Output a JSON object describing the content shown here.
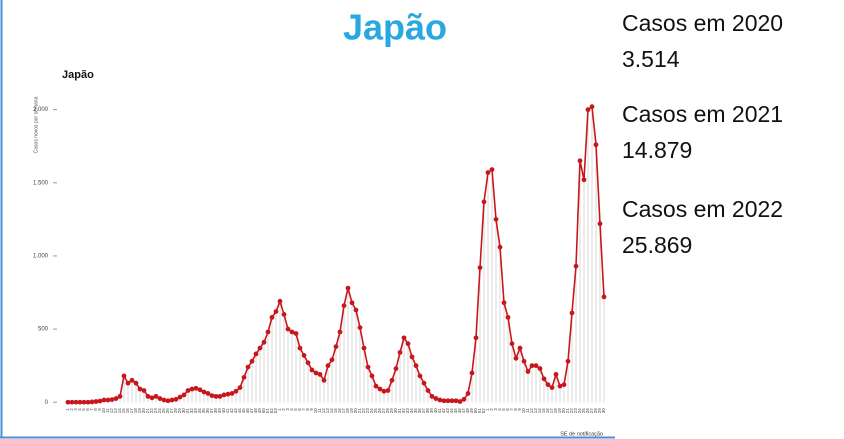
{
  "header": {
    "title": "Japão"
  },
  "summary": [
    {
      "label": "Casos em 2020",
      "value": "3.514"
    },
    {
      "label": "Casos em 2021",
      "value": "14.879"
    },
    {
      "label": "Casos em 2022",
      "value": "25.869"
    }
  ],
  "chart_data": {
    "type": "line",
    "title": "Japão",
    "y_label": "Casos novos por semana",
    "x_label": "SE de notificação",
    "categories": [
      "1",
      "2",
      "3",
      "4",
      "5",
      "6",
      "7",
      "8",
      "9",
      "10",
      "11",
      "12",
      "13",
      "14",
      "15",
      "16",
      "17",
      "18",
      "19",
      "20",
      "21",
      "22",
      "23",
      "24",
      "25",
      "26",
      "27",
      "28",
      "29",
      "30",
      "31",
      "32",
      "33",
      "34",
      "35",
      "36",
      "37",
      "38",
      "39",
      "40",
      "41",
      "42",
      "43",
      "44",
      "45",
      "46",
      "47",
      "48",
      "49",
      "50",
      "51",
      "52",
      "53",
      "1",
      "2",
      "3",
      "4",
      "5",
      "6",
      "7",
      "8",
      "9",
      "10",
      "11",
      "12",
      "13",
      "14",
      "15",
      "16",
      "17",
      "18",
      "19",
      "20",
      "21",
      "22",
      "23",
      "24",
      "25",
      "26",
      "27",
      "28",
      "29",
      "30",
      "31",
      "32",
      "33",
      "34",
      "35",
      "36",
      "37",
      "38",
      "39",
      "40",
      "41",
      "42",
      "43",
      "44",
      "45",
      "46",
      "47",
      "48",
      "49",
      "50",
      "51",
      "52",
      "1",
      "2",
      "3",
      "4",
      "5",
      "6",
      "7",
      "8",
      "9",
      "10",
      "11",
      "12",
      "13",
      "14",
      "15",
      "16",
      "17",
      "18",
      "19",
      "20",
      "21",
      "22",
      "23",
      "24",
      "25",
      "26",
      "27",
      "28",
      "29",
      "30"
    ],
    "series": [
      {
        "name": "Japão",
        "color": "#c8161d",
        "values": [
          0,
          0,
          0,
          0,
          0,
          0,
          2,
          5,
          8,
          15,
          15,
          18,
          25,
          40,
          180,
          130,
          150,
          130,
          90,
          80,
          40,
          30,
          40,
          25,
          15,
          10,
          15,
          20,
          35,
          50,
          80,
          90,
          95,
          85,
          70,
          60,
          45,
          40,
          40,
          50,
          55,
          60,
          75,
          100,
          170,
          240,
          280,
          330,
          370,
          410,
          480,
          580,
          620,
          690,
          600,
          500,
          480,
          470,
          370,
          320,
          270,
          220,
          200,
          190,
          150,
          250,
          290,
          380,
          480,
          660,
          780,
          680,
          630,
          510,
          370,
          240,
          180,
          110,
          90,
          75,
          80,
          150,
          230,
          340,
          440,
          400,
          310,
          250,
          180,
          130,
          80,
          40,
          25,
          15,
          10,
          10,
          10,
          10,
          5,
          20,
          60,
          200,
          440,
          920,
          1370,
          1570,
          1590,
          1250,
          1060,
          680,
          580,
          400,
          300,
          370,
          280,
          210,
          250,
          250,
          230,
          160,
          120,
          100,
          190,
          110,
          120,
          280,
          610,
          930,
          1650,
          1520,
          2000,
          2020,
          1760,
          1220,
          720
        ]
      }
    ],
    "ylim": [
      -60,
      2100
    ],
    "yticks": [
      0,
      500,
      {
        "value": 1000,
        "label": "1.000"
      },
      {
        "value": 1500,
        "label": "1.500"
      },
      {
        "value": 2000,
        "label": "2.000"
      }
    ],
    "bar_color": "#d9d9d9"
  }
}
